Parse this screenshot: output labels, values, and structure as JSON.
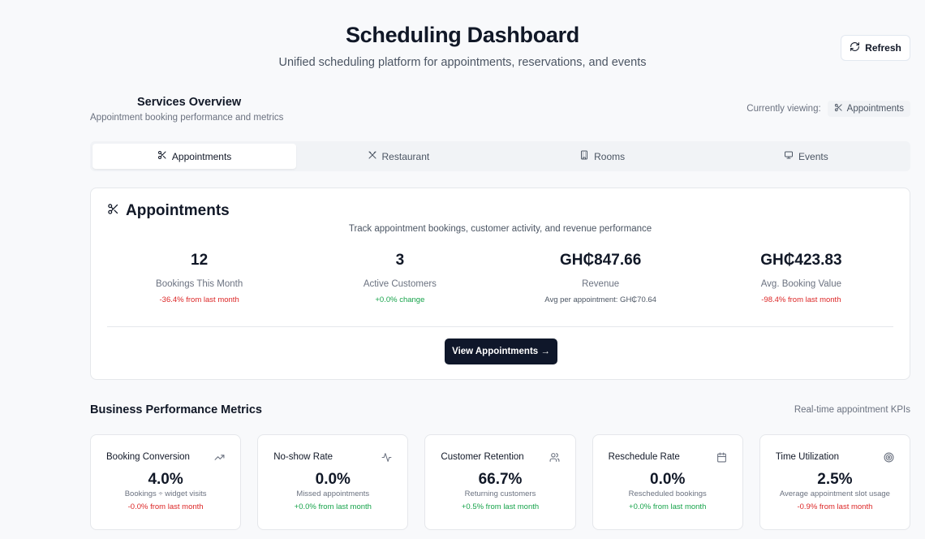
{
  "header": {
    "title": "Scheduling Dashboard",
    "subtitle": "Unified scheduling platform for appointments, reservations, and events",
    "refresh_label": "Refresh"
  },
  "services": {
    "title": "Services Overview",
    "subtitle": "Appointment booking performance and metrics",
    "viewing_label": "Currently viewing:",
    "viewing_value": "Appointments"
  },
  "tabs": [
    {
      "label": "Appointments",
      "icon": "scissors-icon",
      "active": true
    },
    {
      "label": "Restaurant",
      "icon": "utensils-icon",
      "active": false
    },
    {
      "label": "Rooms",
      "icon": "building-icon",
      "active": false
    },
    {
      "label": "Events",
      "icon": "monitor-icon",
      "active": false
    }
  ],
  "card": {
    "title": "Appointments",
    "description": "Track appointment bookings, customer activity, and revenue performance",
    "metrics": [
      {
        "value": "12",
        "label": "Bookings This Month",
        "note": "-36.4% from last month",
        "tone": "neg"
      },
      {
        "value": "3",
        "label": "Active Customers",
        "note": "+0.0% change",
        "tone": "pos"
      },
      {
        "value": "GH₵847.66",
        "label": "Revenue",
        "note": "Avg per appointment: GH₵70.64",
        "tone": "muted"
      },
      {
        "value": "GH₵423.83",
        "label": "Avg. Booking Value",
        "note": "-98.4% from last month",
        "tone": "neg"
      }
    ],
    "button_label": "View Appointments →"
  },
  "performance": {
    "title": "Business Performance Metrics",
    "subtitle": "Real-time appointment KPIs",
    "kpis": [
      {
        "name": "Booking Conversion",
        "icon": "trending-up-icon",
        "value": "4.0%",
        "desc": "Bookings ÷ widget visits",
        "change": "-0.0% from last month",
        "tone": "neg"
      },
      {
        "name": "No-show Rate",
        "icon": "activity-icon",
        "value": "0.0%",
        "desc": "Missed appointments",
        "change": "+0.0% from last month",
        "tone": "pos"
      },
      {
        "name": "Customer Retention",
        "icon": "users-icon",
        "value": "66.7%",
        "desc": "Returning customers",
        "change": "+0.5% from last month",
        "tone": "pos"
      },
      {
        "name": "Reschedule Rate",
        "icon": "calendar-icon",
        "value": "0.0%",
        "desc": "Rescheduled bookings",
        "change": "+0.0% from last month",
        "tone": "pos"
      },
      {
        "name": "Time Utilization",
        "icon": "target-icon",
        "value": "2.5%",
        "desc": "Average appointment slot usage",
        "change": "-0.9% from last month",
        "tone": "neg"
      }
    ]
  },
  "colors": {
    "negative": "#dc2626",
    "positive": "#16a34a",
    "primary_button": "#0f172a",
    "background": "#f8f9fb"
  }
}
